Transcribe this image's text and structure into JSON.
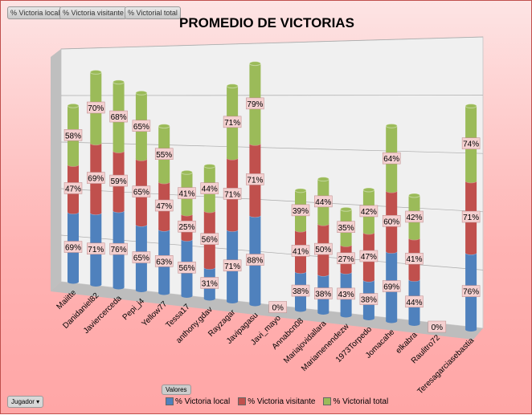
{
  "filter_buttons": [
    "% Victoria local",
    "% Victoria visitante",
    "% Victorial total"
  ],
  "valores_label": "Valores",
  "jugador_label": "Jugador",
  "colors": {
    "local": "#4f81bd",
    "visitante": "#c0504d",
    "total": "#9bbb59"
  },
  "chart_data": {
    "type": "bar",
    "stacked": true,
    "style": "3d-cylinder",
    "title": "PROMEDIO DE VICTORIAS",
    "categories": [
      "Maiitte",
      "Danidaniel82",
      "Javiercerceda",
      "Pepi_j4",
      "Yellow77",
      "Tessa17",
      "anthony.gdav",
      "Rayzagar",
      "Javipagasu",
      "Javi_mayo",
      "Annabcn08",
      "Mariajovidallara",
      "Mariamenendezw",
      "1973Torpedo",
      "Jomacahe",
      "elkabra",
      "Raulitro72",
      "Teresagarciasebastia"
    ],
    "series": [
      {
        "name": "% Victoria local",
        "values": [
          69,
          71,
          76,
          65,
          63,
          56,
          31,
          71,
          88,
          0,
          38,
          38,
          43,
          38,
          69,
          44,
          0,
          76
        ]
      },
      {
        "name": "% Victoria visitante",
        "values": [
          47,
          69,
          59,
          65,
          47,
          25,
          56,
          71,
          71,
          0,
          41,
          50,
          27,
          47,
          60,
          41,
          0,
          71
        ]
      },
      {
        "name": "% Victorial total",
        "values": [
          58,
          70,
          68,
          65,
          55,
          41,
          44,
          71,
          79,
          0,
          39,
          44,
          35,
          42,
          64,
          42,
          0,
          74
        ]
      }
    ],
    "legend": "bottom"
  }
}
